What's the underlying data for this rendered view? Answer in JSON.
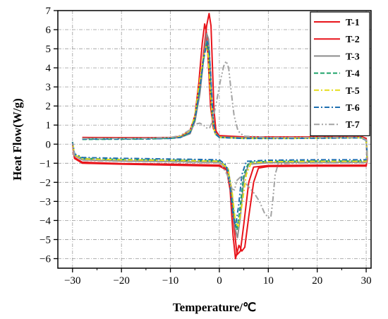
{
  "chart_data": {
    "type": "line",
    "xlabel": "Temperature/℃",
    "ylabel": "Heat Flow(W/g)",
    "xlim": [
      -33,
      31
    ],
    "ylim": [
      -6.5,
      7
    ],
    "xticks": [
      -30,
      -20,
      -10,
      0,
      10,
      20,
      30
    ],
    "yticks": [
      -6,
      -5,
      -4,
      -3,
      -2,
      -1,
      0,
      1,
      2,
      3,
      4,
      5,
      6,
      7
    ],
    "xtick_labels": [
      "−30",
      "−20",
      "−10",
      "0",
      "10",
      "20",
      "30"
    ],
    "ytick_labels": [
      "−6",
      "−5",
      "−4",
      "−3",
      "−2",
      "−1",
      "0",
      "1",
      "2",
      "3",
      "4",
      "5",
      "6",
      "7"
    ],
    "grid": true,
    "legend_position": "top-right",
    "series": [
      {
        "name": "T-1",
        "color": "#e8141b",
        "dash": "solid",
        "points": [
          [
            -28,
            0.33
          ],
          [
            -15,
            0.33
          ],
          [
            -10,
            0.34
          ],
          [
            -8,
            0.38
          ],
          [
            -6,
            0.55
          ],
          [
            -5,
            1.2
          ],
          [
            -4,
            2.8
          ],
          [
            -3.2,
            4.8
          ],
          [
            -2.6,
            6.2
          ],
          [
            -2.1,
            6.85
          ],
          [
            -1.7,
            6.2
          ],
          [
            -1.4,
            4.0
          ],
          [
            -1.1,
            1.8
          ],
          [
            -0.7,
            0.7
          ],
          [
            0,
            0.4
          ],
          [
            5,
            0.36
          ],
          [
            15,
            0.36
          ],
          [
            25,
            0.38
          ],
          [
            29,
            0.38
          ],
          [
            30,
            0.25
          ],
          [
            30.2,
            -0.7
          ],
          [
            30,
            -1.1
          ],
          [
            20,
            -1.1
          ],
          [
            10,
            -1.12
          ],
          [
            7,
            -1.2
          ],
          [
            6,
            -2.0
          ],
          [
            5,
            -4.2
          ],
          [
            4.3,
            -5.6
          ],
          [
            3.6,
            -5.8
          ],
          [
            3.1,
            -4.5
          ],
          [
            2.4,
            -2.2
          ],
          [
            1.5,
            -1.3
          ],
          [
            0,
            -1.1
          ],
          [
            -10,
            -1.05
          ],
          [
            -20,
            -1.02
          ],
          [
            -28,
            -0.95
          ],
          [
            -29.6,
            -0.7
          ],
          [
            -30,
            0.05
          ]
        ]
      },
      {
        "name": "T-2",
        "color": "#e8141b",
        "dash": "solid",
        "points": [
          [
            -28,
            0.35
          ],
          [
            -15,
            0.34
          ],
          [
            -10,
            0.35
          ],
          [
            -8,
            0.4
          ],
          [
            -6,
            0.7
          ],
          [
            -5,
            1.5
          ],
          [
            -4.2,
            3.2
          ],
          [
            -3.5,
            5.3
          ],
          [
            -3,
            6.3
          ],
          [
            -2.6,
            5.8
          ],
          [
            -2.2,
            4.0
          ],
          [
            -1.8,
            2.0
          ],
          [
            -1.2,
            0.8
          ],
          [
            0,
            0.45
          ],
          [
            5,
            0.38
          ],
          [
            15,
            0.38
          ],
          [
            25,
            0.39
          ],
          [
            29,
            0.4
          ],
          [
            30,
            0.3
          ],
          [
            30.2,
            -0.8
          ],
          [
            30,
            -1.15
          ],
          [
            20,
            -1.15
          ],
          [
            10,
            -1.17
          ],
          [
            8,
            -1.25
          ],
          [
            7,
            -2.0
          ],
          [
            6,
            -3.8
          ],
          [
            5.2,
            -5.4
          ],
          [
            4.6,
            -5.6
          ],
          [
            4,
            -5.3
          ],
          [
            3.3,
            -6.0
          ],
          [
            2.8,
            -4.8
          ],
          [
            2.2,
            -2.4
          ],
          [
            1.5,
            -1.35
          ],
          [
            0,
            -1.15
          ],
          [
            -10,
            -1.1
          ],
          [
            -20,
            -1.05
          ],
          [
            -28,
            -1.0
          ],
          [
            -29.6,
            -0.75
          ],
          [
            -30,
            0.0
          ]
        ]
      },
      {
        "name": "T-3",
        "color": "#8c8c8c",
        "dash": "solid",
        "points": [
          [
            -28,
            0.3
          ],
          [
            -15,
            0.3
          ],
          [
            -10,
            0.32
          ],
          [
            -8,
            0.35
          ],
          [
            -6,
            0.55
          ],
          [
            -5,
            1.2
          ],
          [
            -4,
            2.6
          ],
          [
            -3.2,
            4.5
          ],
          [
            -2.6,
            5.8
          ],
          [
            -2.2,
            5.5
          ],
          [
            -1.8,
            3.6
          ],
          [
            -1.4,
            1.6
          ],
          [
            -0.9,
            0.6
          ],
          [
            0,
            0.38
          ],
          [
            5,
            0.33
          ],
          [
            15,
            0.33
          ],
          [
            25,
            0.35
          ],
          [
            29,
            0.35
          ],
          [
            30,
            0.2
          ],
          [
            30.2,
            -0.6
          ],
          [
            30,
            -0.95
          ],
          [
            20,
            -0.95
          ],
          [
            10,
            -0.97
          ],
          [
            6,
            -1.05
          ],
          [
            5,
            -1.8
          ],
          [
            4.3,
            -3.8
          ],
          [
            3.7,
            -4.9
          ],
          [
            3.2,
            -4.4
          ],
          [
            2.6,
            -2.6
          ],
          [
            1.8,
            -1.3
          ],
          [
            0,
            -0.95
          ],
          [
            -10,
            -0.9
          ],
          [
            -20,
            -0.88
          ],
          [
            -28,
            -0.82
          ],
          [
            -29.6,
            -0.6
          ],
          [
            -30,
            0.1
          ]
        ]
      },
      {
        "name": "T-4",
        "color": "#1fa36a",
        "dash": "dashed",
        "points": [
          [
            -28,
            0.25
          ],
          [
            -15,
            0.27
          ],
          [
            -10,
            0.3
          ],
          [
            -8,
            0.35
          ],
          [
            -6,
            0.6
          ],
          [
            -5,
            1.3
          ],
          [
            -4.1,
            2.8
          ],
          [
            -3.3,
            4.3
          ],
          [
            -2.6,
            5.3
          ],
          [
            -2.2,
            4.9
          ],
          [
            -1.8,
            3.2
          ],
          [
            -1.4,
            1.4
          ],
          [
            -0.9,
            0.55
          ],
          [
            0,
            0.35
          ],
          [
            5,
            0.3
          ],
          [
            15,
            0.3
          ],
          [
            25,
            0.33
          ],
          [
            29,
            0.33
          ],
          [
            30,
            0.2
          ],
          [
            30.2,
            -0.55
          ],
          [
            30,
            -0.88
          ],
          [
            20,
            -0.88
          ],
          [
            10,
            -0.9
          ],
          [
            6,
            -0.95
          ],
          [
            5,
            -1.6
          ],
          [
            4.2,
            -3.4
          ],
          [
            3.6,
            -4.5
          ],
          [
            3.1,
            -4.0
          ],
          [
            2.4,
            -2.3
          ],
          [
            1.6,
            -1.2
          ],
          [
            0,
            -0.88
          ],
          [
            -10,
            -0.83
          ],
          [
            -20,
            -0.8
          ],
          [
            -28,
            -0.75
          ],
          [
            -29.6,
            -0.55
          ],
          [
            -30,
            0.12
          ]
        ]
      },
      {
        "name": "T-5",
        "color": "#e6dc19",
        "dash": "dashdot",
        "points": [
          [
            -28,
            0.28
          ],
          [
            -15,
            0.29
          ],
          [
            -10,
            0.32
          ],
          [
            -8,
            0.4
          ],
          [
            -6,
            0.7
          ],
          [
            -5,
            1.5
          ],
          [
            -4.2,
            3.0
          ],
          [
            -3.4,
            4.4
          ],
          [
            -2.7,
            5.1
          ],
          [
            -2.3,
            4.7
          ],
          [
            -1.9,
            3.0
          ],
          [
            -1.4,
            1.3
          ],
          [
            -0.9,
            0.55
          ],
          [
            0,
            0.36
          ],
          [
            5,
            0.31
          ],
          [
            15,
            0.31
          ],
          [
            25,
            0.33
          ],
          [
            29,
            0.34
          ],
          [
            30,
            0.2
          ],
          [
            30.2,
            -0.55
          ],
          [
            30,
            -0.9
          ],
          [
            20,
            -0.9
          ],
          [
            10,
            -0.92
          ],
          [
            6.5,
            -0.98
          ],
          [
            5.5,
            -1.6
          ],
          [
            4.6,
            -3.2
          ],
          [
            3.9,
            -4.3
          ],
          [
            3.3,
            -4.1
          ],
          [
            2.6,
            -2.5
          ],
          [
            1.7,
            -1.25
          ],
          [
            0,
            -0.9
          ],
          [
            -10,
            -0.85
          ],
          [
            -20,
            -0.82
          ],
          [
            -28,
            -0.77
          ],
          [
            -29.6,
            -0.55
          ],
          [
            -30,
            0.12
          ]
        ]
      },
      {
        "name": "T-6",
        "color": "#1e6fb0",
        "dash": "dashdot",
        "points": [
          [
            -28,
            0.27
          ],
          [
            -15,
            0.28
          ],
          [
            -10,
            0.3
          ],
          [
            -8,
            0.35
          ],
          [
            -6,
            0.6
          ],
          [
            -5,
            1.3
          ],
          [
            -4,
            2.9
          ],
          [
            -3.2,
            4.5
          ],
          [
            -2.5,
            5.4
          ],
          [
            -2.1,
            5.0
          ],
          [
            -1.7,
            3.3
          ],
          [
            -1.3,
            1.4
          ],
          [
            -0.8,
            0.55
          ],
          [
            0,
            0.35
          ],
          [
            5,
            0.3
          ],
          [
            15,
            0.3
          ],
          [
            25,
            0.32
          ],
          [
            29,
            0.33
          ],
          [
            30,
            0.2
          ],
          [
            30.2,
            -0.5
          ],
          [
            30,
            -0.82
          ],
          [
            20,
            -0.82
          ],
          [
            10,
            -0.84
          ],
          [
            5.5,
            -0.9
          ],
          [
            4.6,
            -1.6
          ],
          [
            3.9,
            -3.3
          ],
          [
            3.3,
            -4.3
          ],
          [
            2.8,
            -3.8
          ],
          [
            2.2,
            -2.2
          ],
          [
            1.4,
            -1.1
          ],
          [
            0,
            -0.82
          ],
          [
            -10,
            -0.78
          ],
          [
            -20,
            -0.74
          ],
          [
            -28,
            -0.7
          ],
          [
            -29.6,
            -0.5
          ],
          [
            -30,
            0.1
          ]
        ]
      },
      {
        "name": "T-7",
        "color": "#a3a3a3",
        "dash": "dashdotdot",
        "points": [
          [
            -28,
            0.3
          ],
          [
            -15,
            0.31
          ],
          [
            -10,
            0.35
          ],
          [
            -8,
            0.45
          ],
          [
            -6,
            0.75
          ],
          [
            -5,
            1.05
          ],
          [
            -4,
            1.1
          ],
          [
            -3.2,
            1.0
          ],
          [
            -2.6,
            0.85
          ],
          [
            -2,
            0.85
          ],
          [
            -1.4,
            1.2
          ],
          [
            -0.6,
            2.2
          ],
          [
            0.2,
            3.3
          ],
          [
            0.9,
            4.1
          ],
          [
            1.4,
            4.35
          ],
          [
            1.9,
            4.0
          ],
          [
            2.4,
            2.8
          ],
          [
            3,
            1.5
          ],
          [
            3.8,
            0.7
          ],
          [
            5,
            0.42
          ],
          [
            10,
            0.35
          ],
          [
            15,
            0.35
          ],
          [
            25,
            0.36
          ],
          [
            29,
            0.36
          ],
          [
            30,
            0.22
          ],
          [
            30.2,
            -0.6
          ],
          [
            30,
            -0.98
          ],
          [
            20,
            -0.98
          ],
          [
            15,
            -1.0
          ],
          [
            12,
            -1.05
          ],
          [
            11.4,
            -1.6
          ],
          [
            10.9,
            -3.0
          ],
          [
            10.5,
            -3.85
          ],
          [
            10,
            -3.85
          ],
          [
            9.2,
            -3.6
          ],
          [
            8.2,
            -3.0
          ],
          [
            7.2,
            -2.6
          ],
          [
            6.2,
            -2.3
          ],
          [
            5.2,
            -2.0
          ],
          [
            4.4,
            -1.7
          ],
          [
            3.6,
            -1.9
          ],
          [
            3.1,
            -2.4
          ],
          [
            2.6,
            -2.35
          ],
          [
            1.6,
            -1.6
          ],
          [
            0.6,
            -1.15
          ],
          [
            0,
            -0.98
          ],
          [
            -10,
            -0.93
          ],
          [
            -20,
            -0.9
          ],
          [
            -28,
            -0.85
          ],
          [
            -29.6,
            -0.6
          ],
          [
            -30,
            0.08
          ]
        ]
      }
    ]
  }
}
